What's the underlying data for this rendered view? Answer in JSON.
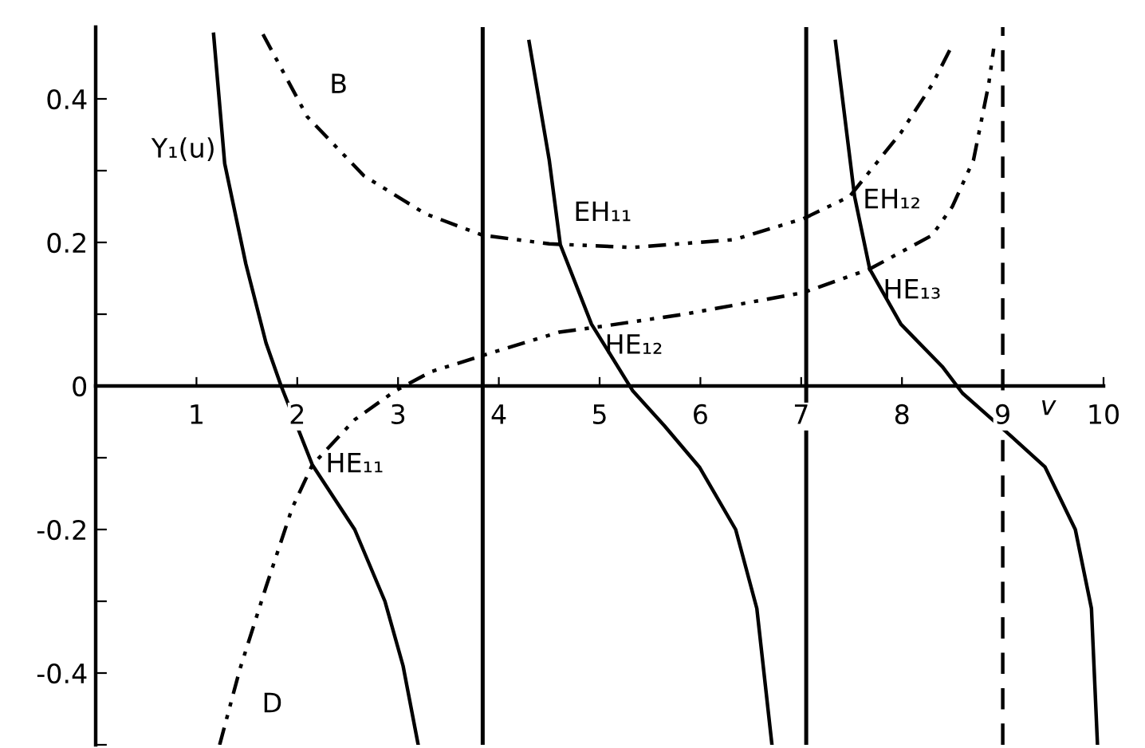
{
  "chart_data": {
    "type": "line",
    "xlabel": "v",
    "grid": false,
    "legend": false,
    "marker": "none",
    "xlim": [
      0,
      10
    ],
    "ylim": [
      -0.5,
      0.5
    ],
    "xticks": [
      1,
      2,
      3,
      4,
      5,
      6,
      7,
      8,
      9,
      10
    ],
    "yticks": [
      {
        "value": -0.5,
        "label": null
      },
      -0.4,
      {
        "value": -0.3,
        "label": null
      },
      -0.2,
      {
        "value": -0.1,
        "label": null
      },
      0,
      {
        "value": 0.1,
        "label": null
      },
      0.2,
      {
        "value": 0.3,
        "label": null
      },
      0.4
    ],
    "series": [
      {
        "color": "#000000",
        "line_style": "solid",
        "x": [
          1.17,
          1.28,
          1.49,
          1.69,
          1.84,
          2.15,
          2.57,
          2.87,
          3.05,
          3.2
        ],
        "values": [
          0.49,
          0.31,
          0.17,
          0.06,
          0.0,
          -0.11,
          -0.2,
          -0.3,
          -0.39,
          -0.5
        ]
      },
      {
        "color": "#000000",
        "line_style": "dashdot",
        "x": [
          1.23,
          1.43,
          1.69,
          1.95,
          2.15,
          2.57,
          2.97,
          3.33,
          3.9,
          4.6,
          4.97,
          5.84,
          7.02,
          7.68,
          8.3,
          8.5,
          8.71,
          8.86,
          8.91
        ],
        "values": [
          -0.5,
          -0.395,
          -0.28,
          -0.17,
          -0.11,
          -0.047,
          -0.007,
          0.02,
          0.045,
          0.075,
          0.082,
          0.1,
          0.13,
          0.163,
          0.21,
          0.25,
          0.315,
          0.42,
          0.47
        ]
      },
      {
        "color": "#000000",
        "line_style": "dashdot",
        "x": [
          1.66,
          2.1,
          2.66,
          3.27,
          3.84,
          4.5,
          5.33,
          6.34,
          7.02,
          7.48,
          7.99,
          8.3,
          8.5
        ],
        "values": [
          0.49,
          0.375,
          0.293,
          0.24,
          0.21,
          0.198,
          0.193,
          0.204,
          0.233,
          0.264,
          0.353,
          0.42,
          0.475
        ]
      },
      {
        "color": "#000000",
        "line_style": "solid",
        "x": [
          4.3,
          4.5,
          4.61,
          4.92,
          5.33,
          5.64,
          5.99,
          6.35,
          6.56,
          6.71
        ],
        "values": [
          0.48,
          0.315,
          0.197,
          0.086,
          -0.007,
          -0.055,
          -0.113,
          -0.2,
          -0.31,
          -0.5
        ]
      },
      {
        "color": "#000000",
        "line_style": "solid",
        "x": [
          7.34,
          7.53,
          7.68,
          7.99,
          8.4,
          8.6,
          9.02,
          9.42,
          9.72,
          9.88,
          9.94
        ],
        "values": [
          0.48,
          0.264,
          0.163,
          0.086,
          0.027,
          -0.01,
          -0.062,
          -0.113,
          -0.2,
          -0.31,
          -0.5
        ]
      }
    ],
    "ref_lines": [
      {
        "axis": "x",
        "value": 3.84,
        "color": "#000000",
        "line_style": "solid"
      },
      {
        "axis": "x",
        "value": 7.05,
        "color": "#000000",
        "line_style": "solid"
      },
      {
        "axis": "x",
        "value": 9.0,
        "color": "#000000",
        "line_style": "dashed"
      }
    ],
    "annotations": [
      {
        "text": "Y₁(u)",
        "x": 1.28,
        "y": 0.31
      },
      {
        "text": "B",
        "x": 2.1,
        "y": 0.375
      },
      {
        "text": "D",
        "x": 1.43,
        "y": -0.395
      },
      {
        "text": "HE₁₁",
        "x": 2.15,
        "y": -0.11
      },
      {
        "text": "EH₁₁",
        "x": 4.61,
        "y": 0.197
      },
      {
        "text": "HE₁₂",
        "x": 4.92,
        "y": 0.086
      },
      {
        "text": "EH₁₂",
        "x": 7.48,
        "y": 0.264
      },
      {
        "text": "HE₁₃",
        "x": 7.68,
        "y": 0.163
      }
    ]
  }
}
